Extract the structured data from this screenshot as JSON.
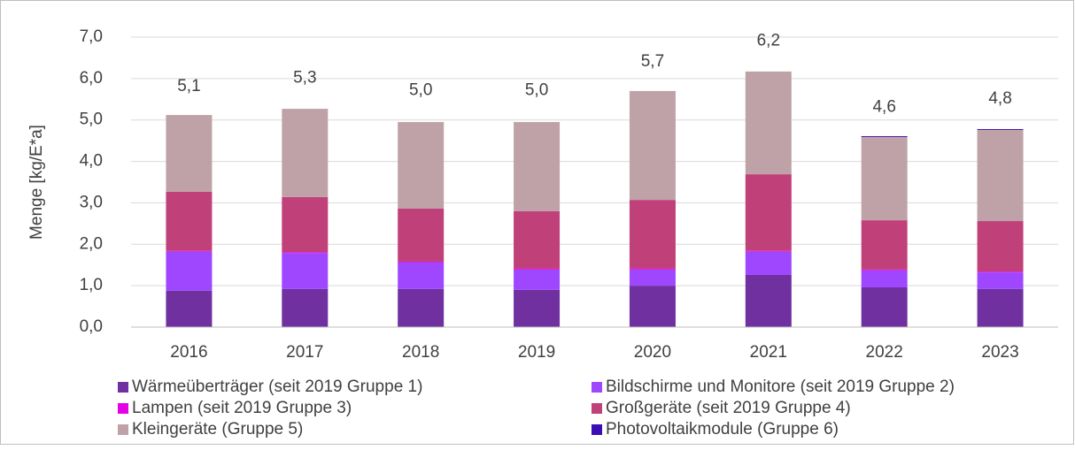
{
  "chart_data": {
    "type": "stacked_bar",
    "y_label": "Menge [kg/E*a]",
    "categories": [
      "2016",
      "2017",
      "2018",
      "2019",
      "2020",
      "2021",
      "2022",
      "2023"
    ],
    "series": [
      {
        "name": "Wärmeüberträger (seit 2019 Gruppe 1)",
        "color": "#7030a0",
        "values": [
          0.88,
          0.92,
          0.92,
          0.9,
          1.0,
          1.26,
          0.96,
          0.92
        ]
      },
      {
        "name": "Bildschirme und Monitore (seit 2019 Gruppe 2)",
        "color": "#9e47ff",
        "values": [
          0.94,
          0.87,
          0.64,
          0.49,
          0.39,
          0.56,
          0.41,
          0.4
        ]
      },
      {
        "name": "Lampen (seit 2019 Gruppe 3)",
        "color": "#e600e6",
        "values": [
          0.02,
          0.02,
          0.02,
          0.02,
          0.02,
          0.02,
          0.02,
          0.02
        ]
      },
      {
        "name": "Großgeräte (seit 2019 Gruppe 4)",
        "color": "#c0407a",
        "values": [
          1.43,
          1.33,
          1.28,
          1.39,
          1.66,
          1.85,
          1.19,
          1.22
        ]
      },
      {
        "name": "Kleingeräte (Gruppe 5)",
        "color": "#bfa2a8",
        "values": [
          1.85,
          2.13,
          2.09,
          2.15,
          2.63,
          2.48,
          2.01,
          2.2
        ]
      },
      {
        "name": "Photovoltaikmodule (Gruppe 6)",
        "color": "#3a0db5",
        "values": [
          0,
          0,
          0,
          0,
          0,
          0,
          0.02,
          0.02
        ]
      }
    ],
    "totals": [
      5.1,
      5.3,
      5.0,
      5.0,
      5.7,
      6.2,
      4.6,
      4.8
    ],
    "total_labels": [
      "5,1",
      "5,3",
      "5,0",
      "5,0",
      "5,7",
      "6,2",
      "4,6",
      "4,8"
    ],
    "ylim": [
      0,
      7
    ],
    "yticks": [
      {
        "value": 0,
        "label": "0,0"
      },
      {
        "value": 1,
        "label": "1,0"
      },
      {
        "value": 2,
        "label": "2,0"
      },
      {
        "value": 3,
        "label": "3,0"
      },
      {
        "value": 4,
        "label": "4,0"
      },
      {
        "value": 5,
        "label": "5,0"
      },
      {
        "value": 6,
        "label": "6,0"
      },
      {
        "value": 7,
        "label": "7,0"
      }
    ],
    "grid": true
  }
}
